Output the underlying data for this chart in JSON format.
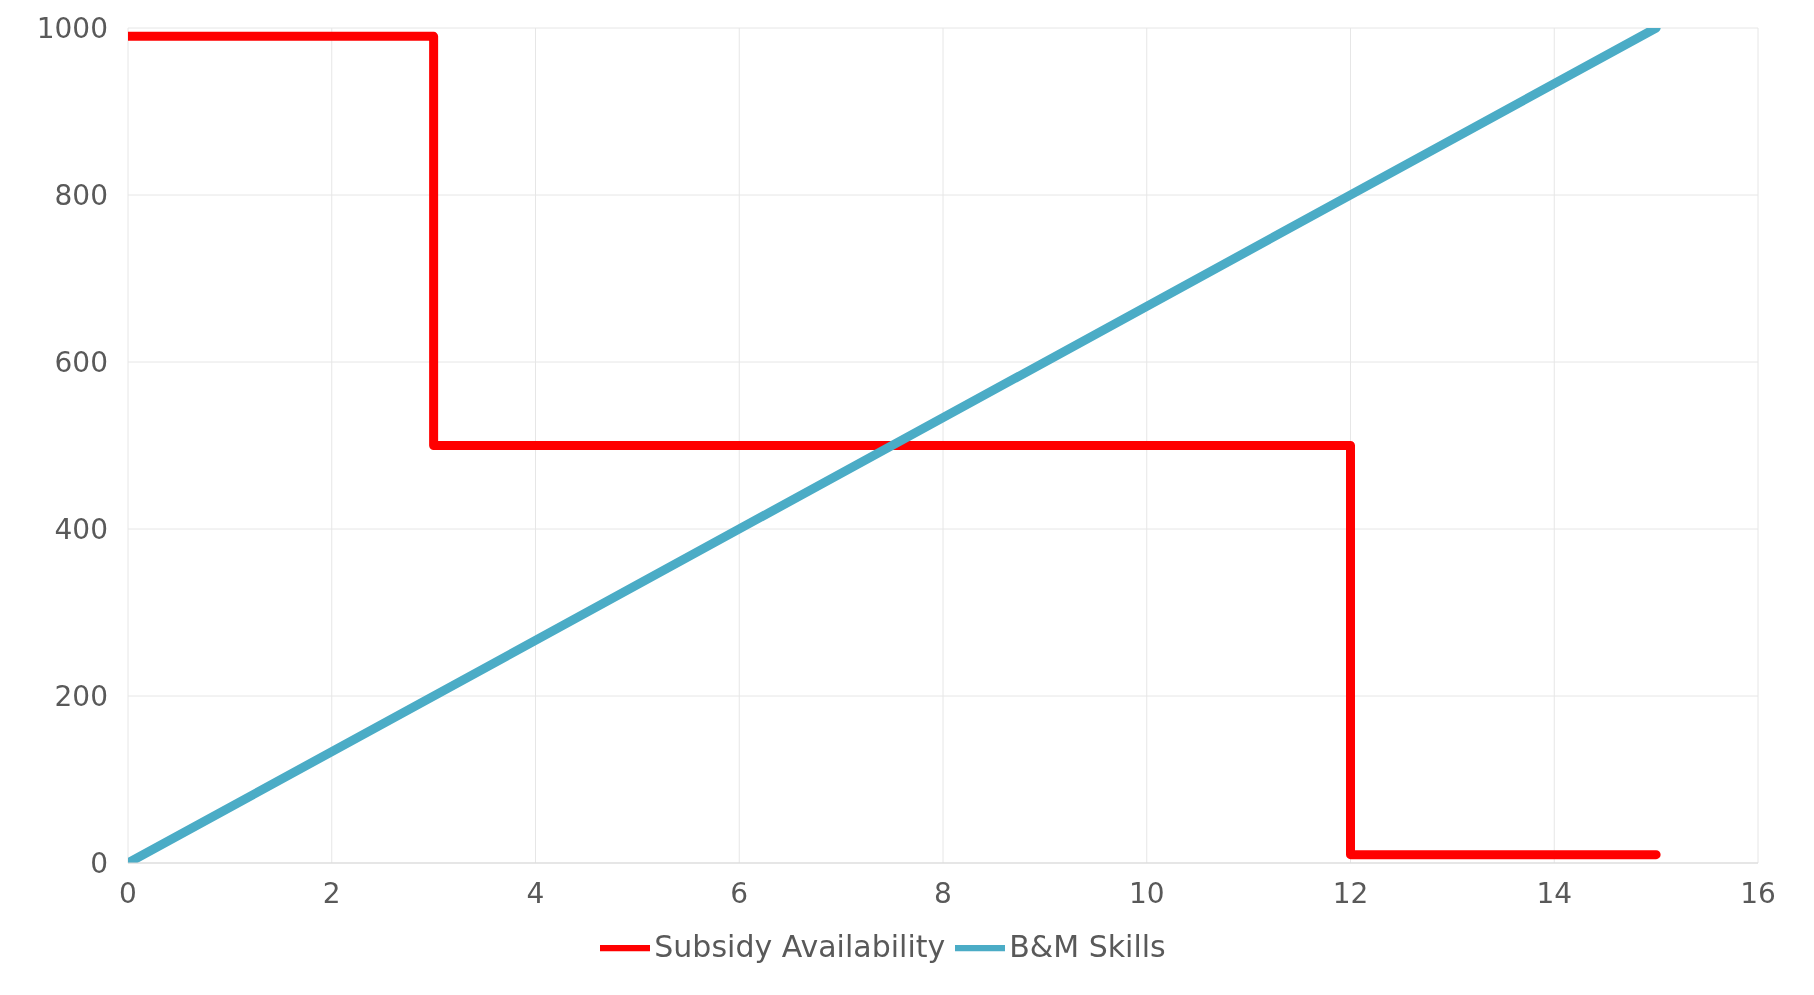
{
  "chart_data": {
    "type": "line",
    "xlim": [
      0,
      16
    ],
    "xticks": [
      0,
      2,
      4,
      6,
      8,
      10,
      12,
      14,
      16
    ],
    "ylim": [
      0,
      1000
    ],
    "yticks": [
      0,
      200,
      400,
      600,
      800,
      1000
    ],
    "grid": true,
    "legend": "bottom",
    "marker": "none",
    "line_style": "solid",
    "series": [
      {
        "name": "Subsidy Availability",
        "type": "step",
        "color": "#ff0000",
        "x": [
          0,
          3,
          12,
          15
        ],
        "values": [
          990,
          500,
          10,
          10
        ]
      },
      {
        "name": "B&M Skills",
        "color": "#4bacc6",
        "x": [
          0,
          15
        ],
        "values": [
          0,
          1000
        ]
      }
    ]
  }
}
